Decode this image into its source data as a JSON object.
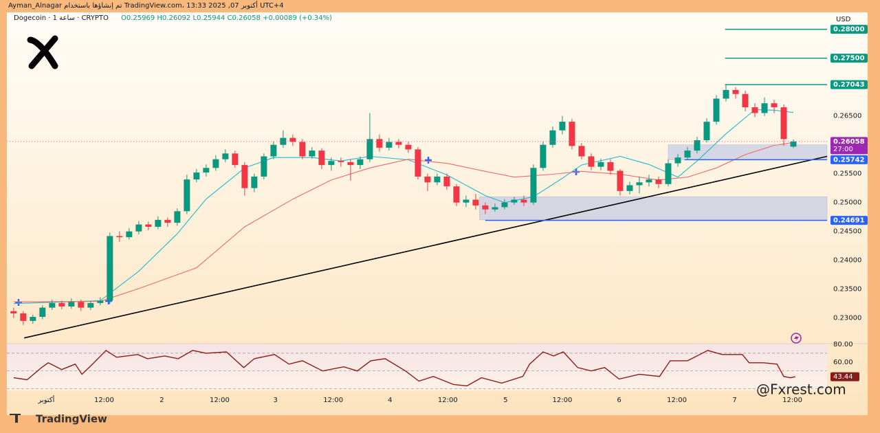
{
  "header": {
    "credit": "Ayman_Alnagar تم إنشاؤها باستخدام TradingView.com، 13:33 2025 ,07 أكتوبر UTC+4"
  },
  "footer": {
    "brand": "TradingView",
    "watermark": "@Fxrest.com"
  },
  "chart_data": [
    {
      "type": "candlestick",
      "title": "Dogecoin · 1 ساعة · CRYPTO",
      "readout": "O0.25969 H0.26092 L0.25944 C0.26058 +0.00089 (+0.34%)",
      "currency": "USD",
      "up_color": "#089981",
      "down_color": "#f23645",
      "xlim": [
        -0.7,
        84.5
      ],
      "xticks": [
        {
          "value": 3.4,
          "label": "أكتوبر"
        },
        {
          "value": 9.4,
          "label": "12:00"
        },
        {
          "value": 15.4,
          "label": "2"
        },
        {
          "value": 21.4,
          "label": "12:00"
        },
        {
          "value": 27.2,
          "label": "3"
        },
        {
          "value": 33.2,
          "label": "12:00"
        },
        {
          "value": 39.1,
          "label": "4"
        },
        {
          "value": 45.1,
          "label": "12:00"
        },
        {
          "value": 51.1,
          "label": "5"
        },
        {
          "value": 57.0,
          "label": "12:00"
        },
        {
          "value": 62.9,
          "label": "6"
        },
        {
          "value": 68.9,
          "label": "12:00"
        },
        {
          "value": 74.9,
          "label": "7"
        },
        {
          "value": 80.9,
          "label": "12:00"
        }
      ],
      "ylim": [
        0.2258,
        0.2827
      ],
      "yticks": [
        {
          "value": 0.23,
          "label": "0.23000"
        },
        {
          "value": 0.235,
          "label": "0.23500"
        },
        {
          "value": 0.24,
          "label": "0.24000"
        },
        {
          "value": 0.245,
          "label": "0.24500"
        },
        {
          "value": 0.25,
          "label": "0.25000"
        },
        {
          "value": 0.255,
          "label": "0.25500"
        },
        {
          "value": 0.265,
          "label": "0.26500"
        }
      ],
      "ohlc": [
        [
          0.2312,
          0.2318,
          0.23,
          0.2308
        ],
        [
          0.2308,
          0.2312,
          0.2288,
          0.2295
        ],
        [
          0.2295,
          0.2306,
          0.229,
          0.2302
        ],
        [
          0.2302,
          0.2322,
          0.2298,
          0.2318
        ],
        [
          0.2318,
          0.2332,
          0.2314,
          0.2326
        ],
        [
          0.2326,
          0.233,
          0.2315,
          0.232
        ],
        [
          0.232,
          0.2334,
          0.2316,
          0.2328
        ],
        [
          0.2328,
          0.2332,
          0.2312,
          0.2318
        ],
        [
          0.2318,
          0.233,
          0.2314,
          0.2326
        ],
        [
          0.2326,
          0.2336,
          0.2322,
          0.233
        ],
        [
          0.233,
          0.2448,
          0.2325,
          0.2442
        ],
        [
          0.2442,
          0.245,
          0.2432,
          0.244
        ],
        [
          0.244,
          0.2456,
          0.2436,
          0.245
        ],
        [
          0.245,
          0.2468,
          0.2445,
          0.2462
        ],
        [
          0.2462,
          0.2467,
          0.2452,
          0.2458
        ],
        [
          0.2458,
          0.2476,
          0.2454,
          0.247
        ],
        [
          0.247,
          0.2474,
          0.2458,
          0.2465
        ],
        [
          0.2465,
          0.249,
          0.246,
          0.2485
        ],
        [
          0.2485,
          0.2548,
          0.248,
          0.254
        ],
        [
          0.254,
          0.2558,
          0.2535,
          0.2552
        ],
        [
          0.2552,
          0.2566,
          0.2545,
          0.256
        ],
        [
          0.256,
          0.2582,
          0.2555,
          0.2575
        ],
        [
          0.2575,
          0.2592,
          0.257,
          0.2585
        ],
        [
          0.2585,
          0.259,
          0.256,
          0.2565
        ],
        [
          0.2565,
          0.257,
          0.2512,
          0.2525
        ],
        [
          0.2525,
          0.255,
          0.2518,
          0.2545
        ],
        [
          0.2545,
          0.2585,
          0.254,
          0.258
        ],
        [
          0.258,
          0.2606,
          0.2575,
          0.26
        ],
        [
          0.26,
          0.2625,
          0.2595,
          0.2612
        ],
        [
          0.2612,
          0.2618,
          0.2598,
          0.2605
        ],
        [
          0.2605,
          0.261,
          0.2575,
          0.258
        ],
        [
          0.258,
          0.2596,
          0.2576,
          0.259
        ],
        [
          0.259,
          0.2594,
          0.2558,
          0.2565
        ],
        [
          0.2565,
          0.2578,
          0.2555,
          0.2572
        ],
        [
          0.2572,
          0.2578,
          0.2562,
          0.257
        ],
        [
          0.257,
          0.2575,
          0.2538,
          0.2565
        ],
        [
          0.2565,
          0.258,
          0.2558,
          0.2575
        ],
        [
          0.2575,
          0.2655,
          0.257,
          0.261
        ],
        [
          0.261,
          0.2618,
          0.2588,
          0.2595
        ],
        [
          0.2595,
          0.2612,
          0.259,
          0.2605
        ],
        [
          0.2605,
          0.261,
          0.2594,
          0.26
        ],
        [
          0.26,
          0.2605,
          0.2586,
          0.2592
        ],
        [
          0.2592,
          0.2596,
          0.254,
          0.2545
        ],
        [
          0.2545,
          0.255,
          0.252,
          0.2535
        ],
        [
          0.2535,
          0.255,
          0.253,
          0.2545
        ],
        [
          0.2545,
          0.255,
          0.2522,
          0.2528
        ],
        [
          0.2528,
          0.2532,
          0.2494,
          0.25
        ],
        [
          0.25,
          0.2512,
          0.2492,
          0.2505
        ],
        [
          0.2505,
          0.2515,
          0.2488,
          0.2495
        ],
        [
          0.2495,
          0.25,
          0.248,
          0.2488
        ],
        [
          0.2488,
          0.2498,
          0.2484,
          0.2492
        ],
        [
          0.2492,
          0.2506,
          0.2488,
          0.25
        ],
        [
          0.25,
          0.251,
          0.2496,
          0.2505
        ],
        [
          0.2505,
          0.2512,
          0.2494,
          0.25
        ],
        [
          0.25,
          0.2566,
          0.2496,
          0.256
        ],
        [
          0.256,
          0.2606,
          0.2555,
          0.26
        ],
        [
          0.26,
          0.2632,
          0.2595,
          0.2625
        ],
        [
          0.2625,
          0.265,
          0.2618,
          0.264
        ],
        [
          0.264,
          0.2645,
          0.2592,
          0.2598
        ],
        [
          0.2598,
          0.2603,
          0.2575,
          0.258
        ],
        [
          0.258,
          0.2585,
          0.2556,
          0.2562
        ],
        [
          0.2562,
          0.2576,
          0.2556,
          0.257
        ],
        [
          0.257,
          0.2575,
          0.2548,
          0.2555
        ],
        [
          0.2555,
          0.2558,
          0.2512,
          0.252
        ],
        [
          0.252,
          0.2536,
          0.2514,
          0.253
        ],
        [
          0.253,
          0.2545,
          0.2516,
          0.2535
        ],
        [
          0.2535,
          0.2548,
          0.2528,
          0.254
        ],
        [
          0.254,
          0.2545,
          0.2525,
          0.2532
        ],
        [
          0.2532,
          0.2575,
          0.2528,
          0.2568
        ],
        [
          0.2568,
          0.2584,
          0.2562,
          0.2578
        ],
        [
          0.2578,
          0.2596,
          0.2574,
          0.259
        ],
        [
          0.259,
          0.2614,
          0.2585,
          0.2608
        ],
        [
          0.2608,
          0.2646,
          0.2604,
          0.264
        ],
        [
          0.264,
          0.2686,
          0.2635,
          0.268
        ],
        [
          0.268,
          0.2704,
          0.2675,
          0.2695
        ],
        [
          0.2695,
          0.27,
          0.268,
          0.2688
        ],
        [
          0.2688,
          0.2694,
          0.2658,
          0.2665
        ],
        [
          0.2665,
          0.2672,
          0.2648,
          0.2655
        ],
        [
          0.2655,
          0.2682,
          0.265,
          0.2672
        ],
        [
          0.2672,
          0.2678,
          0.2655,
          0.2665
        ],
        [
          0.2665,
          0.267,
          0.2598,
          0.261
        ],
        [
          0.25969,
          0.26092,
          0.25944,
          0.26058
        ]
      ],
      "lines": [
        {
          "color": "#22b8cf",
          "x": [
            0,
            9,
            13,
            17,
            20,
            24,
            27,
            31,
            34,
            37,
            41,
            45,
            49,
            51,
            54,
            57,
            59,
            63,
            66,
            69,
            71,
            74,
            77,
            79,
            81
          ],
          "values": [
            0.2325,
            0.233,
            0.2381,
            0.2446,
            0.2506,
            0.256,
            0.2578,
            0.2578,
            0.2572,
            0.258,
            0.2574,
            0.2548,
            0.2512,
            0.25,
            0.251,
            0.2542,
            0.2565,
            0.258,
            0.2566,
            0.2544,
            0.2572,
            0.2619,
            0.2661,
            0.266,
            0.2656
          ]
        },
        {
          "color": "#f06a6a",
          "x": [
            0,
            9,
            13,
            19,
            24,
            29,
            33,
            37,
            41,
            45,
            49,
            52,
            56,
            59,
            63,
            67,
            70,
            73,
            76,
            79,
            81
          ],
          "values": [
            0.2328,
            0.2329,
            0.2351,
            0.2387,
            0.2458,
            0.2506,
            0.2539,
            0.256,
            0.2575,
            0.2568,
            0.2554,
            0.2544,
            0.2549,
            0.2554,
            0.2549,
            0.2539,
            0.2544,
            0.256,
            0.2583,
            0.2599,
            0.2604
          ]
        },
        {
          "color": "#000000",
          "x": [
            1.1,
            84.5
          ],
          "values": [
            0.22655,
            0.258
          ]
        }
      ],
      "zones": [
        {
          "from": 48.4,
          "low": 0.247,
          "high": 0.251
        },
        {
          "from": 68.0,
          "low": 0.25742,
          "high": 0.26
        }
      ],
      "levels": [
        {
          "value": 0.28,
          "label": "0.28000",
          "color": "#089981",
          "from": 73.9
        },
        {
          "value": 0.275,
          "label": "0.27500",
          "color": "#089981",
          "from": 73.9
        },
        {
          "value": 0.27043,
          "label": "0.27043",
          "color": "#089981",
          "from": 73.9
        },
        {
          "value": 0.25742,
          "label": "0.25742",
          "color": "#2962ff",
          "from": 69.7
        },
        {
          "value": 0.24691,
          "label": "0.24691",
          "color": "#2962ff",
          "from": 49.0
        }
      ],
      "current": {
        "value": 0.26058,
        "label": "0.26058",
        "countdown": "27:00",
        "color": "#9c27b0"
      }
    },
    {
      "type": "line",
      "color": "#8b1a1a",
      "ylim": [
        28,
        80.8
      ],
      "yticks": [
        {
          "value": 80,
          "label": "80.00"
        },
        {
          "value": 60,
          "label": "60.00"
        }
      ],
      "bands": [
        70,
        50,
        30
      ],
      "x": [
        0,
        1.4,
        2.9,
        3.6,
        5,
        6.4,
        7.1,
        8.2,
        9.6,
        10.7,
        12.9,
        13.9,
        15.7,
        17.1,
        18.6,
        20,
        22.1,
        23.9,
        25,
        27.1,
        28.6,
        30,
        32.1,
        34.3,
        35.7,
        37.1,
        38.6,
        40.7,
        42.1,
        43.6,
        45.7,
        47.1,
        48.6,
        50.7,
        52.9,
        53.6,
        55,
        56.1,
        57.1,
        58.6,
        60,
        61.4,
        62.9,
        65,
        67.1,
        68.2,
        70,
        72.1,
        73.6,
        75.7,
        76.4,
        77.9,
        79.3,
        80,
        80.7,
        81.2
      ],
      "values": [
        42.3,
        40.0,
        53.8,
        59.2,
        51.5,
        57.7,
        46.2,
        57.7,
        73.1,
        65.4,
        68.5,
        63.8,
        66.9,
        63.8,
        73.1,
        70.0,
        71.5,
        53.8,
        63.8,
        68.5,
        57.7,
        61.5,
        50.0,
        54.6,
        50.0,
        61.5,
        63.8,
        50.0,
        38.5,
        43.8,
        34.6,
        33.1,
        42.3,
        36.2,
        43.8,
        57.7,
        71.5,
        66.9,
        71.5,
        53.8,
        50.0,
        53.8,
        40.8,
        46.2,
        43.8,
        61.5,
        61.5,
        73.1,
        68.5,
        68.5,
        59.2,
        59.2,
        57.7,
        43.8,
        42.3,
        43.44
      ]
    }
  ]
}
